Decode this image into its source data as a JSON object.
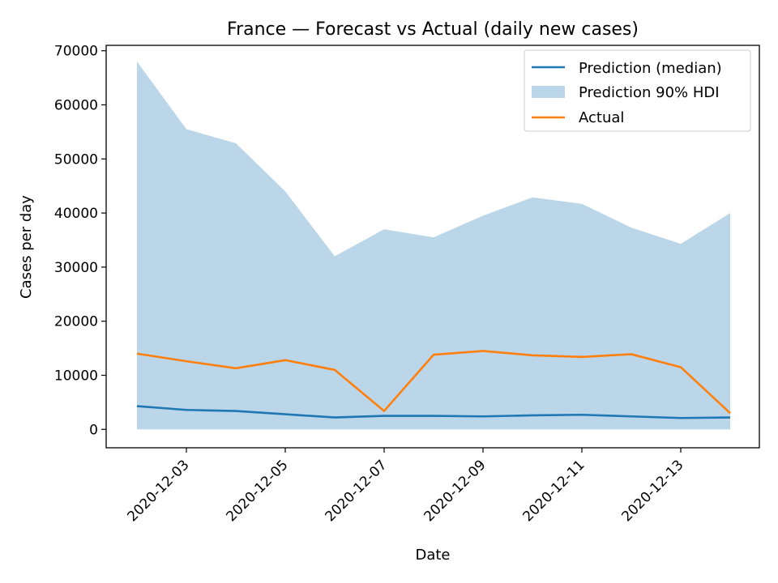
{
  "chart_data": {
    "type": "line",
    "title": "France — Forecast vs Actual (daily new cases)",
    "xlabel": "Date",
    "ylabel": "Cases per day",
    "x": [
      "2020-12-02",
      "2020-12-03",
      "2020-12-04",
      "2020-12-05",
      "2020-12-06",
      "2020-12-07",
      "2020-12-08",
      "2020-12-09",
      "2020-12-10",
      "2020-12-11",
      "2020-12-12",
      "2020-12-13",
      "2020-12-14"
    ],
    "x_tick_labels": [
      "2020-12-03",
      "2020-12-05",
      "2020-12-07",
      "2020-12-09",
      "2020-12-11",
      "2020-12-13"
    ],
    "ylim": [
      -3400,
      71000
    ],
    "y_ticks": [
      0,
      10000,
      20000,
      30000,
      40000,
      50000,
      60000,
      70000
    ],
    "y_tick_labels": [
      "0",
      "10000",
      "20000",
      "30000",
      "40000",
      "50000",
      "60000",
      "70000"
    ],
    "series": [
      {
        "name": "Prediction (median)",
        "kind": "line",
        "color": "#1f77b4",
        "values": [
          4300,
          3600,
          3400,
          2800,
          2200,
          2500,
          2500,
          2400,
          2600,
          2700,
          2400,
          2100,
          2200
        ]
      },
      {
        "name": "Prediction 90% HDI",
        "kind": "band",
        "color": "#1f77b4",
        "opacity": 0.3,
        "lower": [
          0,
          0,
          0,
          0,
          0,
          0,
          0,
          0,
          0,
          0,
          0,
          0,
          0
        ],
        "upper": [
          68000,
          55500,
          52900,
          44000,
          32000,
          37000,
          35500,
          39500,
          42900,
          41700,
          37300,
          34300,
          40000
        ]
      },
      {
        "name": "Actual",
        "kind": "line",
        "color": "#ff7f0e",
        "values": [
          14000,
          12600,
          11300,
          12800,
          11000,
          3400,
          13800,
          14500,
          13700,
          13400,
          13900,
          11500,
          3000
        ]
      }
    ],
    "legend": {
      "position": "top-right",
      "entries": [
        "Prediction (median)",
        "Prediction 90% HDI",
        "Actual"
      ]
    },
    "grid": false
  }
}
